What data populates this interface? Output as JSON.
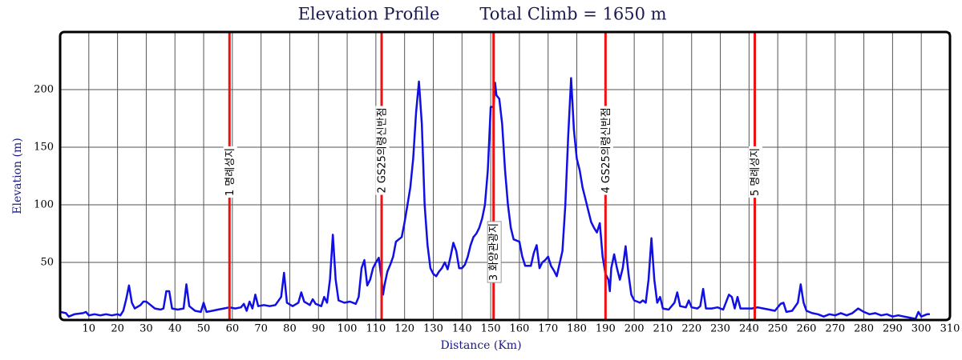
{
  "chart_data": {
    "type": "line",
    "title": "Elevation Profile",
    "subtitle": "Total Climb = 1650 m",
    "x_label": "Distance (Km)",
    "y_label": "Elevation (m)",
    "color": "#0f0fe6",
    "marker_color": "#ee1111",
    "grid": true,
    "xlim": [
      0,
      310
    ],
    "ylim": [
      0,
      250
    ],
    "xticks": [
      10,
      20,
      30,
      40,
      50,
      60,
      70,
      80,
      90,
      100,
      110,
      120,
      130,
      140,
      150,
      160,
      170,
      180,
      190,
      200,
      210,
      220,
      230,
      240,
      250,
      260,
      270,
      280,
      290,
      300,
      310
    ],
    "yticks": [
      50,
      100,
      150,
      200
    ],
    "markers": [
      {
        "x": 59,
        "label": "1 명례성지"
      },
      {
        "x": 112,
        "label": "2 GS25의령신반점"
      },
      {
        "x": 151,
        "label": "3 화양관광지"
      },
      {
        "x": 190,
        "label": "4 GS25의령신반점"
      },
      {
        "x": 242,
        "label": "5 명례성지"
      }
    ],
    "x": [
      0,
      2,
      3,
      5,
      8,
      9,
      10,
      12,
      14,
      16,
      18,
      20,
      21,
      22,
      23,
      24,
      25,
      26,
      28,
      29,
      30,
      31,
      33,
      35,
      36,
      37,
      38,
      39,
      41,
      43,
      44,
      45,
      47,
      49,
      50,
      51,
      53,
      55,
      57,
      59,
      61,
      63,
      64,
      65,
      66,
      67,
      68,
      69,
      71,
      73,
      75,
      77,
      78,
      79,
      81,
      83,
      84,
      85,
      87,
      88,
      89,
      91,
      92,
      93,
      94,
      95,
      96,
      97,
      99,
      101,
      103,
      104,
      105,
      106,
      107,
      108,
      109,
      110,
      111,
      112,
      112.5,
      113,
      114,
      115,
      116,
      117,
      118,
      119,
      120,
      121,
      122,
      123,
      124,
      125,
      126,
      127,
      128,
      129,
      130,
      131,
      132,
      133,
      134,
      135,
      136,
      137,
      138,
      139,
      140,
      141,
      142,
      143,
      144,
      145,
      146,
      147,
      148,
      149,
      150,
      151,
      151.5,
      152,
      153,
      154,
      155,
      156,
      157,
      158,
      160,
      161,
      162,
      164,
      165,
      166,
      167,
      168,
      169,
      170,
      171,
      172,
      173,
      175,
      176,
      177,
      178,
      179,
      180,
      181,
      182,
      183,
      184,
      185,
      186,
      187,
      188,
      189,
      190,
      191,
      191.5,
      192,
      193,
      194,
      195,
      196,
      197,
      198,
      199,
      200,
      202,
      203,
      204,
      205,
      206,
      207,
      208,
      209,
      210,
      212,
      214,
      215,
      216,
      218,
      219,
      220,
      222,
      223,
      224,
      225,
      227,
      229,
      231,
      233,
      234,
      235,
      236,
      237,
      239,
      241,
      243,
      245,
      247,
      249,
      251,
      252,
      253,
      255,
      257,
      258,
      259,
      260,
      262,
      264,
      266,
      268,
      270,
      272,
      274,
      276,
      278,
      280,
      282,
      284,
      286,
      288,
      290,
      292,
      294,
      296,
      298,
      299,
      300,
      302,
      303
    ],
    "values": [
      7,
      6,
      3,
      5,
      6,
      7,
      4,
      5,
      4,
      5,
      4,
      5,
      4,
      8,
      18,
      30,
      15,
      10,
      13,
      16,
      16,
      14,
      10,
      9,
      10,
      25,
      25,
      10,
      9,
      10,
      31,
      12,
      8,
      7,
      15,
      7,
      8,
      9,
      10,
      11,
      10,
      11,
      14,
      8,
      16,
      10,
      22,
      12,
      13,
      12,
      13,
      20,
      41,
      15,
      12,
      15,
      24,
      16,
      13,
      18,
      14,
      12,
      20,
      15,
      35,
      74,
      35,
      17,
      15,
      16,
      14,
      20,
      45,
      52,
      30,
      35,
      45,
      50,
      54,
      35,
      22,
      30,
      42,
      48,
      55,
      68,
      70,
      72,
      85,
      100,
      115,
      140,
      180,
      207,
      170,
      100,
      65,
      45,
      40,
      38,
      42,
      45,
      50,
      44,
      55,
      67,
      60,
      45,
      45,
      48,
      55,
      65,
      72,
      75,
      80,
      88,
      100,
      130,
      185,
      185,
      206,
      195,
      192,
      170,
      130,
      100,
      80,
      70,
      68,
      55,
      47,
      47,
      58,
      65,
      45,
      50,
      52,
      55,
      47,
      43,
      38,
      60,
      100,
      160,
      210,
      165,
      140,
      130,
      115,
      105,
      95,
      85,
      80,
      76,
      84,
      55,
      40,
      35,
      25,
      45,
      57,
      45,
      35,
      45,
      64,
      40,
      22,
      17,
      15,
      17,
      15,
      35,
      71,
      35,
      15,
      20,
      10,
      9,
      15,
      24,
      12,
      11,
      17,
      11,
      10,
      12,
      27,
      10,
      10,
      11,
      9,
      22,
      20,
      10,
      20,
      10,
      10,
      10,
      11,
      10,
      9,
      8,
      14,
      15,
      7,
      8,
      15,
      31,
      15,
      8,
      6,
      5,
      3,
      5,
      4,
      6,
      4,
      6,
      10,
      7,
      5,
      6,
      4,
      5,
      3,
      4,
      3,
      2,
      1,
      7,
      3,
      5,
      5
    ]
  }
}
